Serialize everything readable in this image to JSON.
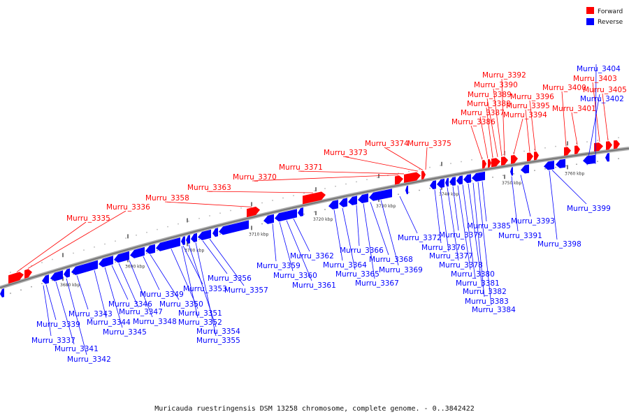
{
  "caption": "Muricauda ruestringensis DSM 13258 chromosome, complete genome. - 0..3842422",
  "legend": [
    {
      "label": "Forward",
      "color": "#ff0000"
    },
    {
      "label": "Reverse",
      "color": "#0000ff"
    }
  ],
  "colors": {
    "forward": "#ff0000",
    "reverse": "#0000ff",
    "track": "#909090"
  },
  "ruler_labels": [
    "3680 kbp",
    "3690 kbp",
    "3700 kbp",
    "3710 kbp",
    "3720 kbp",
    "3730 kbp",
    "3740 kbp",
    "3750 kbp",
    "3760 kbp"
  ],
  "forward_genes": [
    "Murru_3335",
    "Murru_3336",
    "Murru_3358",
    "Murru_3363",
    "Murru_3370",
    "Murru_3371",
    "Murru_3373",
    "Murru_3374",
    "Murru_3375",
    "Murru_3386",
    "Murru_3387",
    "Murru_3388",
    "Murru_3389",
    "Murru_3390",
    "Murru_3392",
    "Murru_3394",
    "Murru_3395",
    "Murru_3396",
    "Murru_3400",
    "Murru_3401",
    "Murru_3403",
    "Murru_3405"
  ],
  "reverse_genes": [
    "Murru_3337",
    "Murru_3339",
    "Murru_3341",
    "Murru_3342",
    "Murru_3343",
    "Murru_3344",
    "Murru_3345",
    "Murru_3346",
    "Murru_3347",
    "Murru_3348",
    "Murru_3349",
    "Murru_3350",
    "Murru_3351",
    "Murru_3352",
    "Murru_3353",
    "Murru_3354",
    "Murru_3355",
    "Murru_3356",
    "Murru_3357",
    "Murru_3359",
    "Murru_3360",
    "Murru_3361",
    "Murru_3362",
    "Murru_3364",
    "Murru_3365",
    "Murru_3366",
    "Murru_3367",
    "Murru_3368",
    "Murru_3369",
    "Murru_3372",
    "Murru_3376",
    "Murru_3377",
    "Murru_3378",
    "Murru_3379",
    "Murru_3380",
    "Murru_3381",
    "Murru_3382",
    "Murru_3383",
    "Murru_3384",
    "Murru_3385",
    "Murru_3391",
    "Murru_3393",
    "Murru_3398",
    "Murru_3399",
    "Murru_3402",
    "Murru_3404"
  ]
}
